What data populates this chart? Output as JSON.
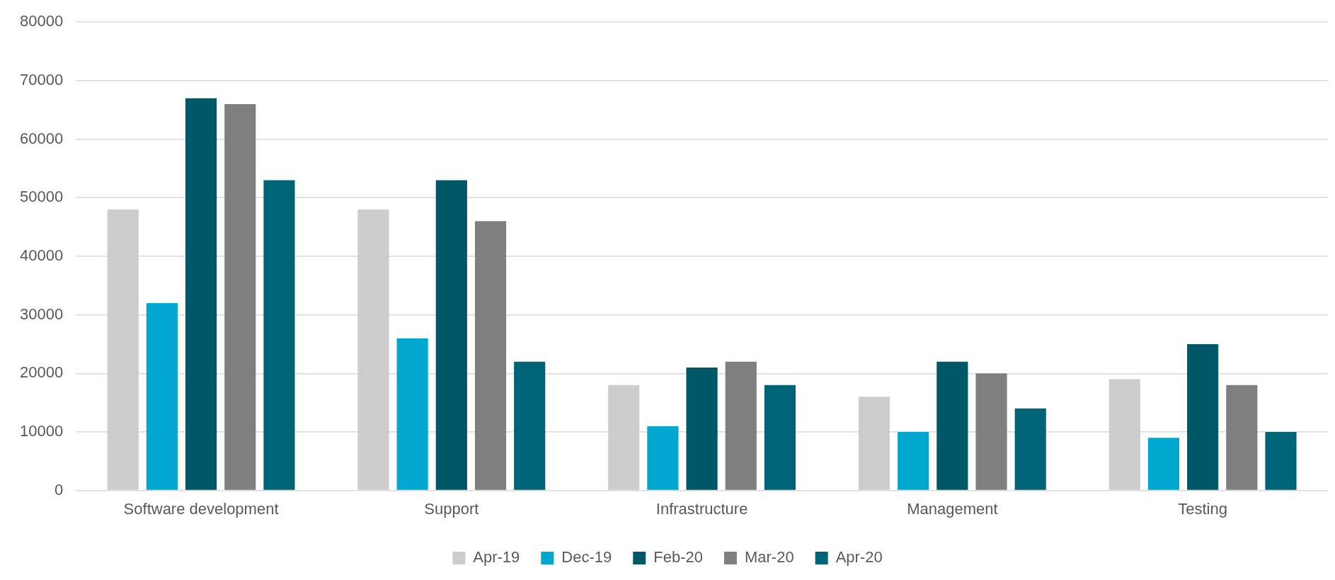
{
  "chart_data": {
    "type": "bar",
    "categories": [
      "Software development",
      "Support",
      "Infrastructure",
      "Management",
      "Testing"
    ],
    "series": [
      {
        "name": "Apr-19",
        "color": "#cccccc",
        "values": [
          48000,
          48000,
          18000,
          16000,
          19000
        ]
      },
      {
        "name": "Dec-19",
        "color": "#00a8d0",
        "values": [
          32000,
          26000,
          11000,
          10000,
          9000
        ]
      },
      {
        "name": "Feb-20",
        "color": "#005767",
        "values": [
          67000,
          53000,
          21000,
          22000,
          25000
        ]
      },
      {
        "name": "Mar-20",
        "color": "#7f7f7f",
        "values": [
          66000,
          46000,
          22000,
          20000,
          18000
        ]
      },
      {
        "name": "Apr-20",
        "color": "#006479",
        "values": [
          53000,
          22000,
          18000,
          14000,
          10000
        ]
      }
    ],
    "ylim": [
      0,
      80000
    ],
    "yticks": [
      0,
      10000,
      20000,
      30000,
      40000,
      50000,
      60000,
      70000,
      80000
    ],
    "grid": "y",
    "legend": "bottom"
  }
}
